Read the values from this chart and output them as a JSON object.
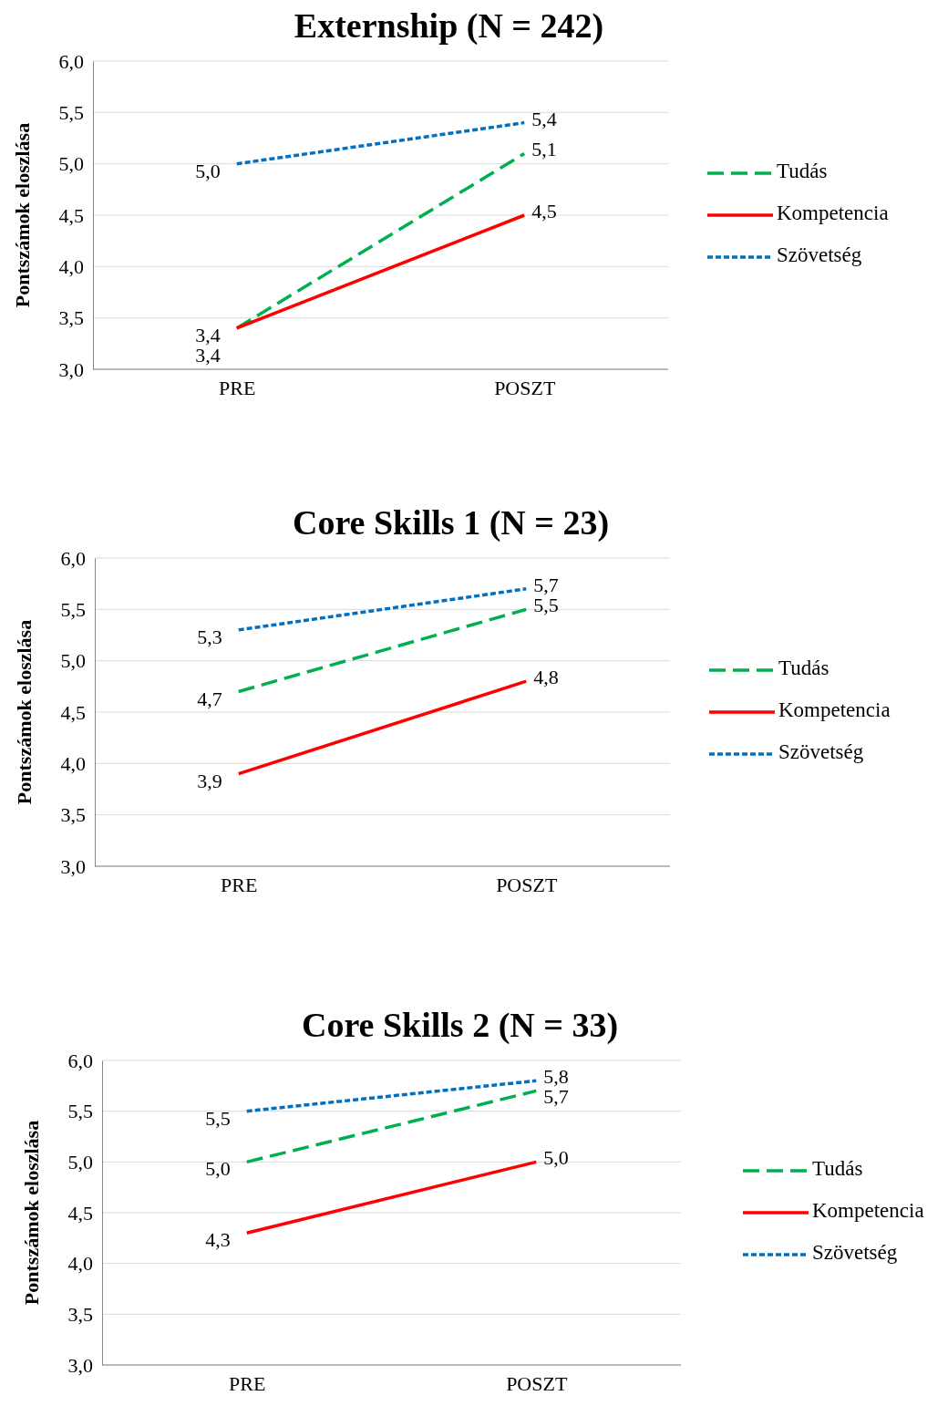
{
  "chart_data": [
    {
      "type": "line",
      "title": "Externship (N = 242)",
      "ylabel": "Pontszámok eloszlása",
      "categories": [
        "PRE",
        "POSZT"
      ],
      "ylim": [
        3,
        6
      ],
      "yticks": [
        {
          "value": 3,
          "label": "3,0"
        },
        {
          "value": 3.5,
          "label": "3,5"
        },
        {
          "value": 4,
          "label": "4,0"
        },
        {
          "value": 4.5,
          "label": "4,5"
        },
        {
          "value": 5,
          "label": "5,0"
        },
        {
          "value": 5.5,
          "label": "5,5"
        },
        {
          "value": 6,
          "label": "6,0"
        }
      ],
      "grid": "y",
      "legend": "right",
      "marker": "none",
      "series": [
        {
          "name": "Tudás",
          "color": "#00b050",
          "line_style": "dashed",
          "values": [
            3.4,
            5.1
          ],
          "value_labels": [
            "3,4",
            "5,1"
          ]
        },
        {
          "name": "Kompetencia",
          "color": "#ff0000",
          "line_style": "solid",
          "values": [
            3.4,
            4.5
          ],
          "value_labels": [
            "3,4",
            "4,5"
          ]
        },
        {
          "name": "Szövetség",
          "color": "#0070c0",
          "line_style": "dotted",
          "values": [
            5.0,
            5.4
          ],
          "value_labels": [
            "5,0",
            "5,4"
          ]
        }
      ]
    },
    {
      "type": "line",
      "title": "Core Skills 1 (N = 23)",
      "ylabel": "Pontszámok eloszlása",
      "categories": [
        "PRE",
        "POSZT"
      ],
      "ylim": [
        3,
        6
      ],
      "yticks": [
        {
          "value": 3,
          "label": "3,0"
        },
        {
          "value": 3.5,
          "label": "3,5"
        },
        {
          "value": 4,
          "label": "4,0"
        },
        {
          "value": 4.5,
          "label": "4,5"
        },
        {
          "value": 5,
          "label": "5,0"
        },
        {
          "value": 5.5,
          "label": "5,5"
        },
        {
          "value": 6,
          "label": "6,0"
        }
      ],
      "grid": "y",
      "legend": "right",
      "marker": "none",
      "series": [
        {
          "name": "Tudás",
          "color": "#00b050",
          "line_style": "dashed",
          "values": [
            4.7,
            5.5
          ],
          "value_labels": [
            "4,7",
            "5,5"
          ]
        },
        {
          "name": "Kompetencia",
          "color": "#ff0000",
          "line_style": "solid",
          "values": [
            3.9,
            4.8
          ],
          "value_labels": [
            "3,9",
            "4,8"
          ]
        },
        {
          "name": "Szövetség",
          "color": "#0070c0",
          "line_style": "dotted",
          "values": [
            5.3,
            5.7
          ],
          "value_labels": [
            "5,3",
            "5,7"
          ]
        }
      ]
    },
    {
      "type": "line",
      "title": "Core Skills 2 (N = 33)",
      "ylabel": "Pontszámok eloszlása",
      "categories": [
        "PRE",
        "POSZT"
      ],
      "ylim": [
        3,
        6
      ],
      "yticks": [
        {
          "value": 3,
          "label": "3,0"
        },
        {
          "value": 3.5,
          "label": "3,5"
        },
        {
          "value": 4,
          "label": "4,0"
        },
        {
          "value": 4.5,
          "label": "4,5"
        },
        {
          "value": 5,
          "label": "5,0"
        },
        {
          "value": 5.5,
          "label": "5,5"
        },
        {
          "value": 6,
          "label": "6,0"
        }
      ],
      "grid": "y",
      "legend": "right",
      "marker": "none",
      "series": [
        {
          "name": "Tudás",
          "color": "#00b050",
          "line_style": "dashed",
          "values": [
            5.0,
            5.7
          ],
          "value_labels": [
            "5,0",
            "5,7"
          ]
        },
        {
          "name": "Kompetencia",
          "color": "#ff0000",
          "line_style": "solid",
          "values": [
            4.3,
            5.0
          ],
          "value_labels": [
            "4,3",
            "5,0"
          ]
        },
        {
          "name": "Szövetség",
          "color": "#0070c0",
          "line_style": "dotted",
          "values": [
            5.5,
            5.8
          ],
          "value_labels": [
            "5,5",
            "5,8"
          ]
        }
      ]
    }
  ]
}
